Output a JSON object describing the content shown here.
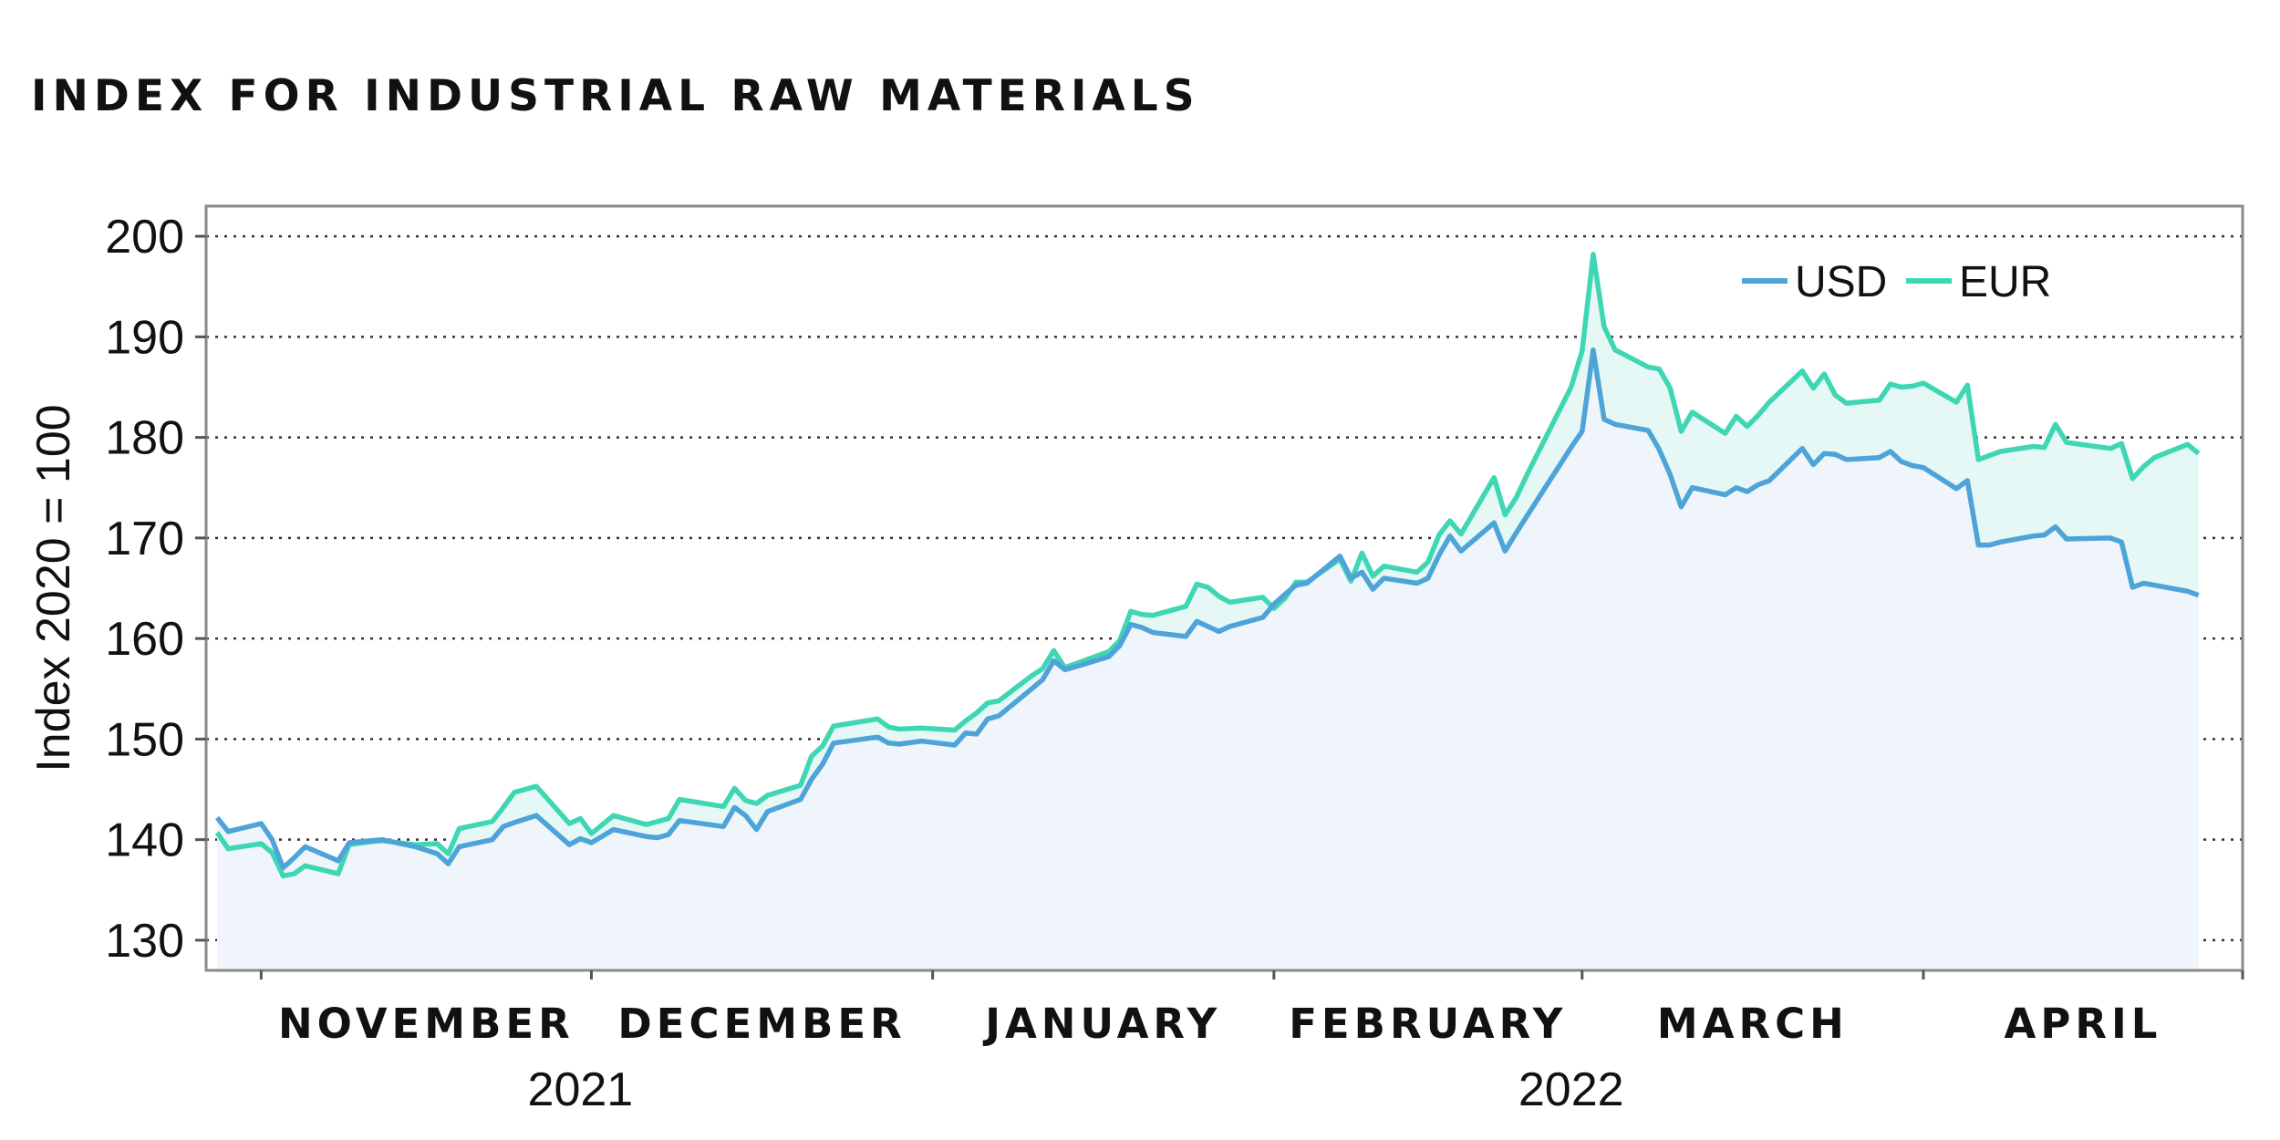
{
  "title": "INDEX FOR INDUSTRIAL RAW MATERIALS",
  "chart_data": {
    "type": "line",
    "title": "INDEX FOR INDUSTRIAL RAW MATERIALS",
    "ylabel": "Index 2020 = 100",
    "xlabel": "",
    "ylim": [
      127,
      203
    ],
    "yticks": [
      130,
      140,
      150,
      160,
      170,
      180,
      190,
      200
    ],
    "grid": "horizontal dotted",
    "legend_position": "top-right",
    "x_range": [
      "2021-10-27",
      "2022-04-30"
    ],
    "month_labels": [
      {
        "label": "NOVEMBER",
        "month": "2021-11"
      },
      {
        "label": "DECEMBER",
        "month": "2021-12"
      },
      {
        "label": "JANUARY",
        "month": "2022-01"
      },
      {
        "label": "FEBRUARY",
        "month": "2022-02"
      },
      {
        "label": "MARCH",
        "month": "2022-03"
      },
      {
        "label": "APRIL",
        "month": "2022-04"
      }
    ],
    "month_boundaries": [
      "2021-11-01",
      "2021-12-01",
      "2022-01-01",
      "2022-02-01",
      "2022-03-01",
      "2022-04-01",
      "2022-04-30"
    ],
    "year_labels": [
      {
        "label": "2021",
        "center": "2021-11-30"
      },
      {
        "label": "2022",
        "center": "2022-02-28"
      }
    ],
    "series": [
      {
        "name": "USD",
        "color": "#4ea3d8",
        "points": [
          [
            "2021-10-28",
            142.2
          ],
          [
            "2021-10-29",
            140.8
          ],
          [
            "2021-11-01",
            141.6
          ],
          [
            "2021-11-02",
            140.0
          ],
          [
            "2021-11-03",
            137.2
          ],
          [
            "2021-11-04",
            138.2
          ],
          [
            "2021-11-05",
            139.3
          ],
          [
            "2021-11-08",
            137.9
          ],
          [
            "2021-11-09",
            139.7
          ],
          [
            "2021-11-11",
            139.9
          ],
          [
            "2021-11-12",
            140.0
          ],
          [
            "2021-11-15",
            139.3
          ],
          [
            "2021-11-17",
            138.6
          ],
          [
            "2021-11-18",
            137.6
          ],
          [
            "2021-11-19",
            139.3
          ],
          [
            "2021-11-22",
            140.0
          ],
          [
            "2021-11-23",
            141.3
          ],
          [
            "2021-11-24",
            141.7
          ],
          [
            "2021-11-26",
            142.4
          ],
          [
            "2021-11-29",
            139.5
          ],
          [
            "2021-11-30",
            140.1
          ],
          [
            "2021-12-01",
            139.7
          ],
          [
            "2021-12-03",
            141.0
          ],
          [
            "2021-12-06",
            140.3
          ],
          [
            "2021-12-07",
            140.2
          ],
          [
            "2021-12-08",
            140.5
          ],
          [
            "2021-12-09",
            141.9
          ],
          [
            "2021-12-13",
            141.3
          ],
          [
            "2021-12-14",
            143.2
          ],
          [
            "2021-12-15",
            142.4
          ],
          [
            "2021-12-16",
            141.0
          ],
          [
            "2021-12-17",
            142.8
          ],
          [
            "2021-12-20",
            144.0
          ],
          [
            "2021-12-21",
            146.0
          ],
          [
            "2021-12-22",
            147.5
          ],
          [
            "2021-12-23",
            149.6
          ],
          [
            "2021-12-27",
            150.2
          ],
          [
            "2021-12-28",
            149.6
          ],
          [
            "2021-12-29",
            149.5
          ],
          [
            "2021-12-31",
            149.8
          ],
          [
            "2022-01-03",
            149.4
          ],
          [
            "2022-01-04",
            150.6
          ],
          [
            "2022-01-05",
            150.5
          ],
          [
            "2022-01-06",
            152.0
          ],
          [
            "2022-01-07",
            152.3
          ],
          [
            "2022-01-10",
            155.0
          ],
          [
            "2022-01-11",
            155.9
          ],
          [
            "2022-01-12",
            157.8
          ],
          [
            "2022-01-13",
            156.9
          ],
          [
            "2022-01-14",
            157.2
          ],
          [
            "2022-01-17",
            158.2
          ],
          [
            "2022-01-18",
            159.3
          ],
          [
            "2022-01-19",
            161.4
          ],
          [
            "2022-01-20",
            161.1
          ],
          [
            "2022-01-21",
            160.6
          ],
          [
            "2022-01-24",
            160.2
          ],
          [
            "2022-01-25",
            161.7
          ],
          [
            "2022-01-26",
            161.2
          ],
          [
            "2022-01-27",
            160.7
          ],
          [
            "2022-01-28",
            161.2
          ],
          [
            "2022-01-31",
            162.1
          ],
          [
            "2022-02-01",
            163.4
          ],
          [
            "2022-02-02",
            164.4
          ],
          [
            "2022-02-03",
            165.3
          ],
          [
            "2022-02-04",
            165.5
          ],
          [
            "2022-02-07",
            168.2
          ],
          [
            "2022-02-08",
            166.0
          ],
          [
            "2022-02-09",
            166.6
          ],
          [
            "2022-02-10",
            164.9
          ],
          [
            "2022-02-11",
            166.0
          ],
          [
            "2022-02-14",
            165.5
          ],
          [
            "2022-02-15",
            166.0
          ],
          [
            "2022-02-16",
            168.3
          ],
          [
            "2022-02-17",
            170.2
          ],
          [
            "2022-02-18",
            168.7
          ],
          [
            "2022-02-21",
            171.5
          ],
          [
            "2022-02-22",
            168.7
          ],
          [
            "2022-02-23",
            170.5
          ],
          [
            "2022-02-24",
            172.2
          ],
          [
            "2022-02-28",
            179.0
          ],
          [
            "2022-03-01",
            180.6
          ],
          [
            "2022-03-02",
            188.7
          ],
          [
            "2022-03-03",
            181.8
          ],
          [
            "2022-03-04",
            181.3
          ],
          [
            "2022-03-07",
            180.7
          ],
          [
            "2022-03-08",
            178.8
          ],
          [
            "2022-03-09",
            176.3
          ],
          [
            "2022-03-10",
            173.1
          ],
          [
            "2022-03-11",
            175.0
          ],
          [
            "2022-03-14",
            174.3
          ],
          [
            "2022-03-15",
            175.0
          ],
          [
            "2022-03-16",
            174.6
          ],
          [
            "2022-03-17",
            175.3
          ],
          [
            "2022-03-18",
            175.7
          ],
          [
            "2022-03-21",
            178.9
          ],
          [
            "2022-03-22",
            177.3
          ],
          [
            "2022-03-23",
            178.4
          ],
          [
            "2022-03-24",
            178.3
          ],
          [
            "2022-03-25",
            177.8
          ],
          [
            "2022-03-28",
            178.0
          ],
          [
            "2022-03-29",
            178.6
          ],
          [
            "2022-03-30",
            177.6
          ],
          [
            "2022-03-31",
            177.2
          ],
          [
            "2022-04-01",
            177.0
          ],
          [
            "2022-04-04",
            174.9
          ],
          [
            "2022-04-05",
            175.7
          ],
          [
            "2022-04-06",
            169.3
          ],
          [
            "2022-04-07",
            169.3
          ],
          [
            "2022-04-08",
            169.6
          ],
          [
            "2022-04-11",
            170.2
          ],
          [
            "2022-04-12",
            170.3
          ],
          [
            "2022-04-13",
            171.1
          ],
          [
            "2022-04-14",
            169.9
          ],
          [
            "2022-04-18",
            170.0
          ],
          [
            "2022-04-19",
            169.6
          ],
          [
            "2022-04-20",
            165.1
          ],
          [
            "2022-04-21",
            165.5
          ],
          [
            "2022-04-22",
            165.3
          ],
          [
            "2022-04-25",
            164.7
          ],
          [
            "2022-04-26",
            164.3
          ]
        ]
      },
      {
        "name": "EUR",
        "color": "#3fd6b4",
        "points": [
          [
            "2021-10-28",
            140.7
          ],
          [
            "2021-10-29",
            139.1
          ],
          [
            "2021-11-01",
            139.6
          ],
          [
            "2021-11-02",
            138.7
          ],
          [
            "2021-11-03",
            136.4
          ],
          [
            "2021-11-04",
            136.6
          ],
          [
            "2021-11-05",
            137.4
          ],
          [
            "2021-11-08",
            136.6
          ],
          [
            "2021-11-09",
            139.5
          ],
          [
            "2021-11-11",
            139.8
          ],
          [
            "2021-11-12",
            139.9
          ],
          [
            "2021-11-15",
            139.5
          ],
          [
            "2021-11-17",
            139.6
          ],
          [
            "2021-11-18",
            138.6
          ],
          [
            "2021-11-19",
            141.1
          ],
          [
            "2021-11-22",
            141.8
          ],
          [
            "2021-11-23",
            143.2
          ],
          [
            "2021-11-24",
            144.7
          ],
          [
            "2021-11-26",
            145.3
          ],
          [
            "2021-11-29",
            141.6
          ],
          [
            "2021-11-30",
            142.1
          ],
          [
            "2021-12-01",
            140.6
          ],
          [
            "2021-12-03",
            142.4
          ],
          [
            "2021-12-06",
            141.5
          ],
          [
            "2021-12-07",
            141.8
          ],
          [
            "2021-12-08",
            142.1
          ],
          [
            "2021-12-09",
            144.0
          ],
          [
            "2021-12-13",
            143.3
          ],
          [
            "2021-12-14",
            145.1
          ],
          [
            "2021-12-15",
            143.9
          ],
          [
            "2021-12-16",
            143.6
          ],
          [
            "2021-12-17",
            144.4
          ],
          [
            "2021-12-20",
            145.4
          ],
          [
            "2021-12-21",
            148.3
          ],
          [
            "2021-12-22",
            149.3
          ],
          [
            "2021-12-23",
            151.3
          ],
          [
            "2021-12-27",
            152.0
          ],
          [
            "2021-12-28",
            151.2
          ],
          [
            "2021-12-29",
            151.0
          ],
          [
            "2021-12-31",
            151.1
          ],
          [
            "2022-01-03",
            150.9
          ],
          [
            "2022-01-04",
            151.8
          ],
          [
            "2022-01-05",
            152.6
          ],
          [
            "2022-01-06",
            153.6
          ],
          [
            "2022-01-07",
            153.8
          ],
          [
            "2022-01-10",
            156.3
          ],
          [
            "2022-01-11",
            157.0
          ],
          [
            "2022-01-12",
            158.8
          ],
          [
            "2022-01-13",
            157.1
          ],
          [
            "2022-01-14",
            157.5
          ],
          [
            "2022-01-17",
            158.7
          ],
          [
            "2022-01-18",
            159.8
          ],
          [
            "2022-01-19",
            162.7
          ],
          [
            "2022-01-20",
            162.4
          ],
          [
            "2022-01-21",
            162.3
          ],
          [
            "2022-01-24",
            163.2
          ],
          [
            "2022-01-25",
            165.4
          ],
          [
            "2022-01-26",
            165.1
          ],
          [
            "2022-01-27",
            164.2
          ],
          [
            "2022-01-28",
            163.6
          ],
          [
            "2022-01-31",
            164.1
          ],
          [
            "2022-02-01",
            163.0
          ],
          [
            "2022-02-02",
            164.0
          ],
          [
            "2022-02-03",
            165.6
          ],
          [
            "2022-02-04",
            165.6
          ],
          [
            "2022-02-07",
            167.9
          ],
          [
            "2022-02-08",
            165.7
          ],
          [
            "2022-02-09",
            168.5
          ],
          [
            "2022-02-10",
            166.2
          ],
          [
            "2022-02-11",
            167.2
          ],
          [
            "2022-02-14",
            166.6
          ],
          [
            "2022-02-15",
            167.6
          ],
          [
            "2022-02-16",
            170.3
          ],
          [
            "2022-02-17",
            171.7
          ],
          [
            "2022-02-18",
            170.4
          ],
          [
            "2022-02-21",
            176.0
          ],
          [
            "2022-02-22",
            172.3
          ],
          [
            "2022-02-23",
            174.0
          ],
          [
            "2022-02-24",
            176.3
          ],
          [
            "2022-02-28",
            185.0
          ],
          [
            "2022-03-01",
            188.6
          ],
          [
            "2022-03-02",
            198.2
          ],
          [
            "2022-03-03",
            191.0
          ],
          [
            "2022-03-04",
            188.7
          ],
          [
            "2022-03-07",
            187.0
          ],
          [
            "2022-03-08",
            186.8
          ],
          [
            "2022-03-09",
            184.9
          ],
          [
            "2022-03-10",
            180.6
          ],
          [
            "2022-03-11",
            182.5
          ],
          [
            "2022-03-14",
            180.4
          ],
          [
            "2022-03-15",
            182.1
          ],
          [
            "2022-03-16",
            181.1
          ],
          [
            "2022-03-17",
            182.2
          ],
          [
            "2022-03-18",
            183.5
          ],
          [
            "2022-03-21",
            186.6
          ],
          [
            "2022-03-22",
            184.9
          ],
          [
            "2022-03-23",
            186.3
          ],
          [
            "2022-03-24",
            184.2
          ],
          [
            "2022-03-25",
            183.4
          ],
          [
            "2022-03-28",
            183.7
          ],
          [
            "2022-03-29",
            185.3
          ],
          [
            "2022-03-30",
            185.0
          ],
          [
            "2022-03-31",
            185.1
          ],
          [
            "2022-04-01",
            185.4
          ],
          [
            "2022-04-04",
            183.5
          ],
          [
            "2022-04-05",
            185.2
          ],
          [
            "2022-04-06",
            177.8
          ],
          [
            "2022-04-07",
            178.2
          ],
          [
            "2022-04-08",
            178.6
          ],
          [
            "2022-04-11",
            179.1
          ],
          [
            "2022-04-12",
            179.0
          ],
          [
            "2022-04-13",
            181.3
          ],
          [
            "2022-04-14",
            179.5
          ],
          [
            "2022-04-18",
            178.9
          ],
          [
            "2022-04-19",
            179.4
          ],
          [
            "2022-04-20",
            175.9
          ],
          [
            "2022-04-21",
            177.1
          ],
          [
            "2022-04-22",
            178.0
          ],
          [
            "2022-04-25",
            179.3
          ],
          [
            "2022-04-26",
            178.4
          ]
        ]
      }
    ]
  }
}
